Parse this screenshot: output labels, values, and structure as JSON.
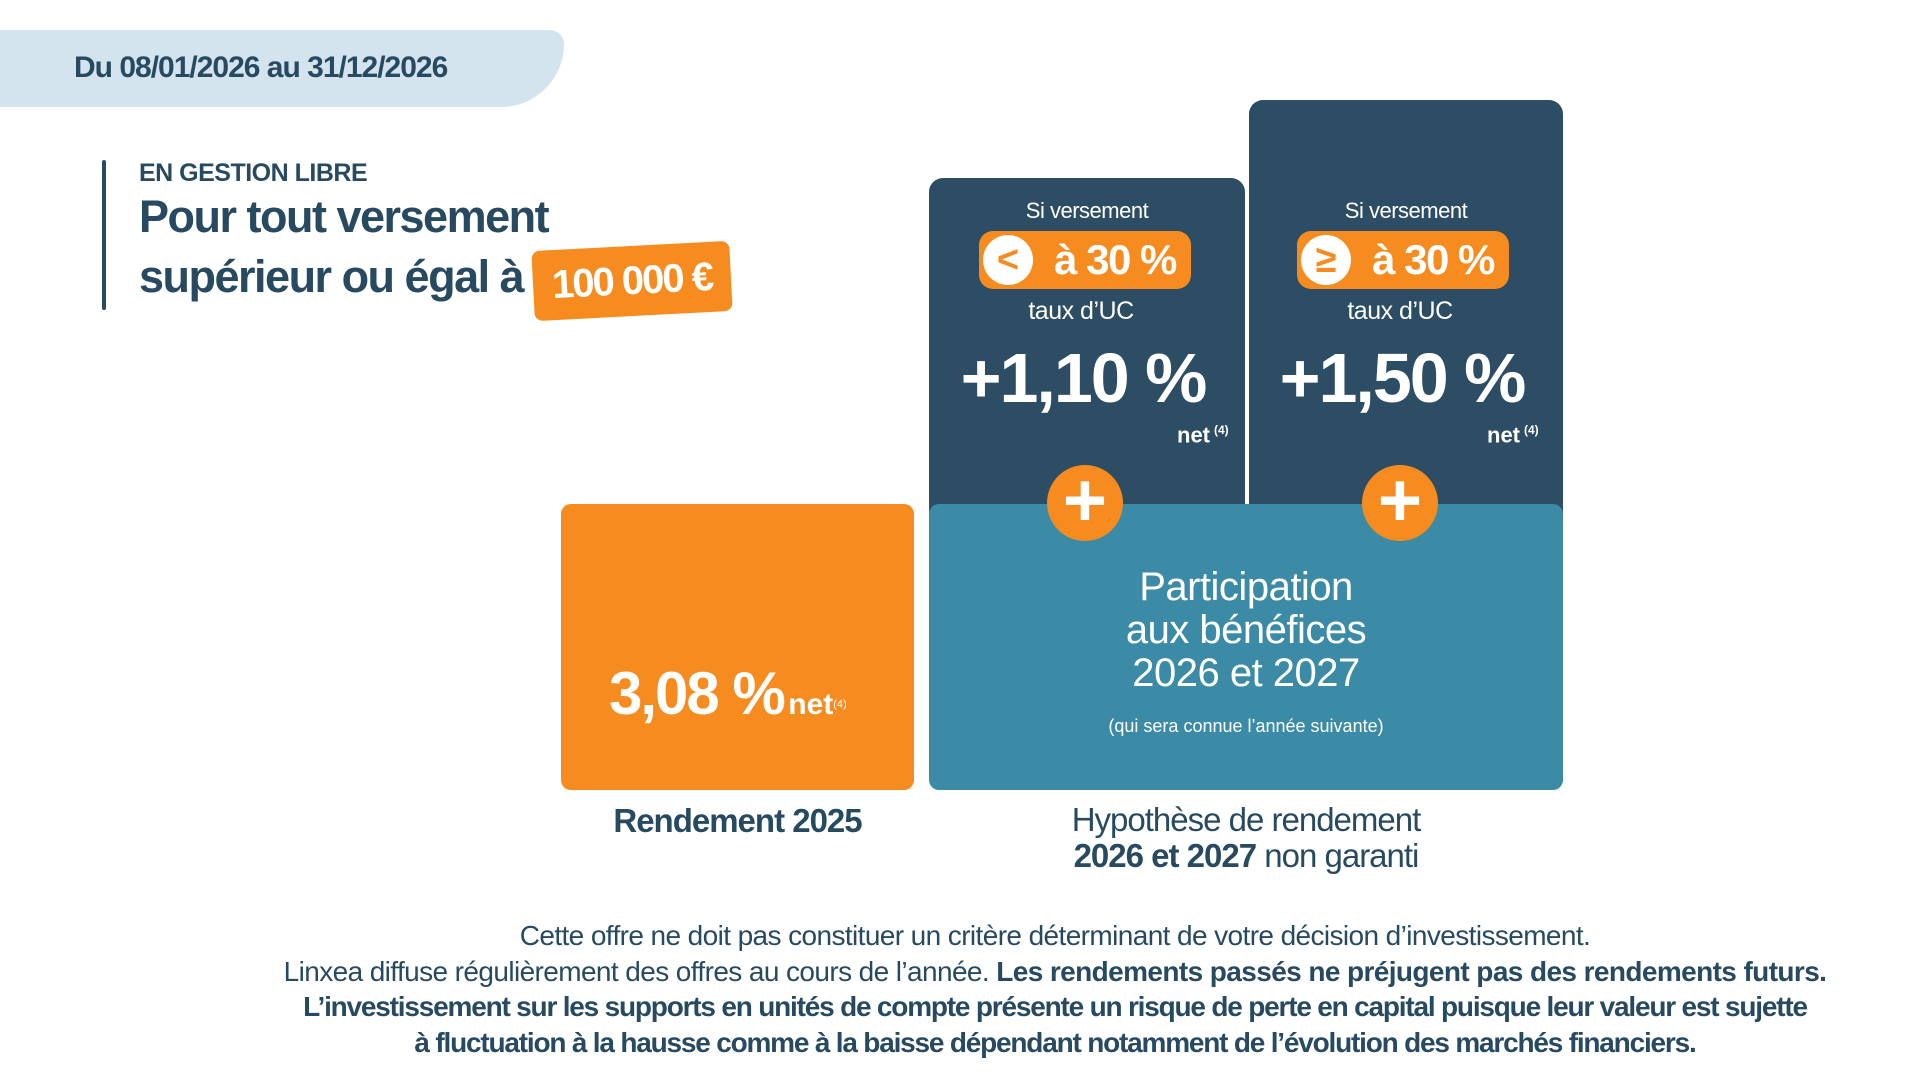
{
  "header": {
    "date_range": "Du 08/01/2026 au 31/12/2026"
  },
  "intro": {
    "kicker": "EN GESTION LIBRE",
    "line1": "Pour tout versement",
    "line2": "supérieur ou égal à",
    "amount": "100 000 €"
  },
  "cards": [
    {
      "label": "Si versement",
      "comparator_icon": "less-than-icon",
      "comparator": "<",
      "threshold": "à 30 %",
      "sub": "taux d’UC",
      "bonus": "+1,10 %",
      "net": "net",
      "note": "(4)"
    },
    {
      "label": "Si versement",
      "comparator_icon": "greater-or-equal-icon",
      "comparator": "≥",
      "threshold": "à 30 %",
      "sub": "taux d’UC",
      "bonus": "+1,50 %",
      "net": "net",
      "note": "(4)"
    }
  ],
  "rendement": {
    "value": "3,08 %",
    "net": "net",
    "note": "(4)",
    "caption": "Rendement 2025"
  },
  "participation": {
    "line1": "Participation",
    "line2": "aux bénéfices",
    "line3": "2026 et 2027",
    "sub": "(qui sera connue l’année suivante)",
    "caption_line1": "Hypothèse de rendement",
    "caption_bold": "2026 et 2027",
    "caption_rest": " non garanti"
  },
  "footer": {
    "line1": "Cette offre ne doit pas constituer un critère déterminant de votre décision d’investissement.",
    "line2_regular": "Linxea diffuse régulièrement des offres au cours de l’année. ",
    "line2_bold": "Les rendements passés ne préjugent pas des rendements futurs.",
    "line3": "L’investissement sur les supports en unités de compte présente un risque de perte en capital puisque leur valeur est sujette",
    "line4": "à fluctuation à la hausse comme à la baisse dépendant notamment de l’évolution des marchés financiers."
  },
  "colors": {
    "navy": "#2c4d63",
    "teal": "#3b8aa6",
    "orange": "#f68b1f",
    "date_bar": "#d3e4ef"
  }
}
